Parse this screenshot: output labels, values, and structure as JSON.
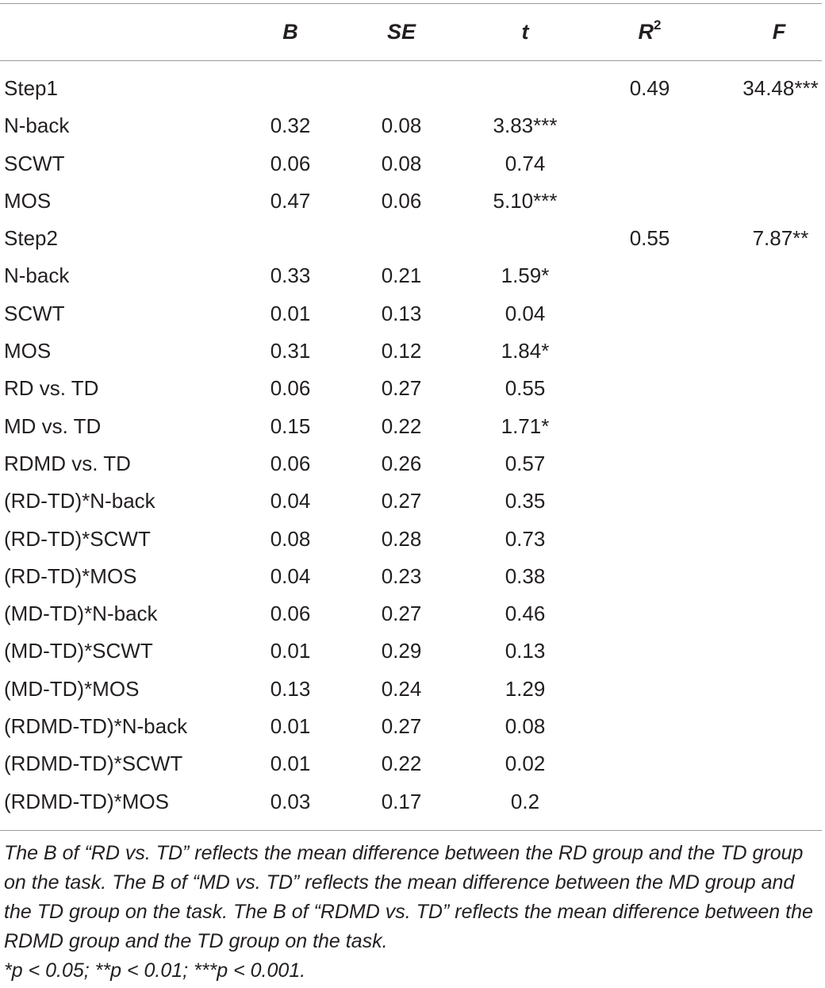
{
  "table": {
    "columns": [
      "",
      "B",
      "SE",
      "t",
      "R",
      "F"
    ],
    "r_superscript": "2",
    "rows": [
      {
        "label": "Step1",
        "B": "",
        "SE": "",
        "t": "",
        "R2": "0.49",
        "F": "34.48***"
      },
      {
        "label": "N-back",
        "B": "0.32",
        "SE": "0.08",
        "t": "3.83***",
        "R2": "",
        "F": ""
      },
      {
        "label": "SCWT",
        "B": "0.06",
        "SE": "0.08",
        "t": "0.74",
        "R2": "",
        "F": ""
      },
      {
        "label": "MOS",
        "B": "0.47",
        "SE": "0.06",
        "t": "5.10***",
        "R2": "",
        "F": ""
      },
      {
        "label": "Step2",
        "B": "",
        "SE": "",
        "t": "",
        "R2": "0.55",
        "F": "7.87**"
      },
      {
        "label": "N-back",
        "B": "0.33",
        "SE": "0.21",
        "t": "1.59*",
        "R2": "",
        "F": ""
      },
      {
        "label": "SCWT",
        "B": "0.01",
        "SE": "0.13",
        "t": "0.04",
        "R2": "",
        "F": ""
      },
      {
        "label": "MOS",
        "B": "0.31",
        "SE": "0.12",
        "t": "1.84*",
        "R2": "",
        "F": ""
      },
      {
        "label": "RD vs. TD",
        "B": "0.06",
        "SE": "0.27",
        "t": "0.55",
        "R2": "",
        "F": ""
      },
      {
        "label": "MD vs. TD",
        "B": "0.15",
        "SE": "0.22",
        "t": "1.71*",
        "R2": "",
        "F": ""
      },
      {
        "label": "RDMD vs. TD",
        "B": "0.06",
        "SE": "0.26",
        "t": "0.57",
        "R2": "",
        "F": ""
      },
      {
        "label": "(RD-TD)*N-back",
        "B": "0.04",
        "SE": "0.27",
        "t": "0.35",
        "R2": "",
        "F": ""
      },
      {
        "label": "(RD-TD)*SCWT",
        "B": "0.08",
        "SE": "0.28",
        "t": "0.73",
        "R2": "",
        "F": ""
      },
      {
        "label": "(RD-TD)*MOS",
        "B": "0.04",
        "SE": "0.23",
        "t": "0.38",
        "R2": "",
        "F": ""
      },
      {
        "label": "(MD-TD)*N-back",
        "B": "0.06",
        "SE": "0.27",
        "t": "0.46",
        "R2": "",
        "F": ""
      },
      {
        "label": "(MD-TD)*SCWT",
        "B": "0.01",
        "SE": "0.29",
        "t": "0.13",
        "R2": "",
        "F": ""
      },
      {
        "label": "(MD-TD)*MOS",
        "B": "0.13",
        "SE": "0.24",
        "t": "1.29",
        "R2": "",
        "F": ""
      },
      {
        "label": "(RDMD-TD)*N-back",
        "B": "0.01",
        "SE": "0.27",
        "t": "0.08",
        "R2": "",
        "F": ""
      },
      {
        "label": "(RDMD-TD)*SCWT",
        "B": "0.01",
        "SE": "0.22",
        "t": "0.02",
        "R2": "",
        "F": ""
      },
      {
        "label": "(RDMD-TD)*MOS",
        "B": "0.03",
        "SE": "0.17",
        "t": "0.2",
        "R2": "",
        "F": ""
      }
    ]
  },
  "notes": {
    "explanation": "The B of “RD vs. TD” reflects the mean difference between the RD group and the TD group on the task. The B of “MD vs. TD” reflects the mean difference between the MD group and the TD group on the task. The B of “RDMD vs. TD” reflects the mean difference between the RDMD group and the TD group on the task.",
    "significance": "*p < 0.05; **p < 0.01; ***p < 0.001."
  }
}
